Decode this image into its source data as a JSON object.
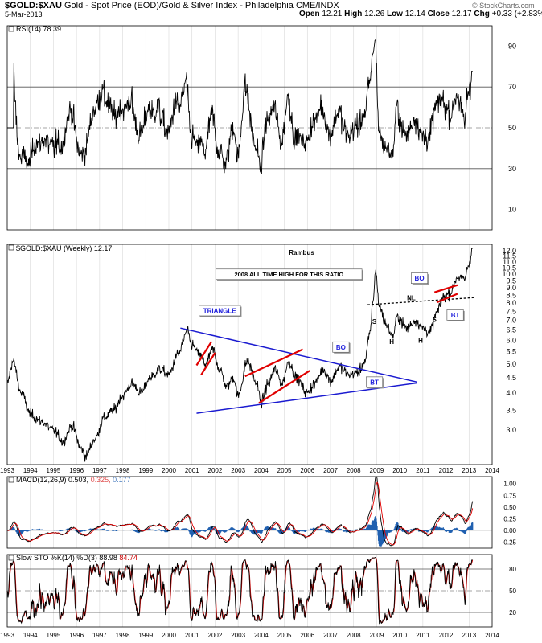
{
  "header": {
    "symbol": "$GOLD:$XAU",
    "description": "Gold - Spot Price (EOD)/Gold & Silver Index - Philadelphia",
    "exchange": "CME/INDX",
    "date": "5-Mar-2013",
    "open_label": "Open",
    "open": "12.21",
    "high_label": "High",
    "high": "12.26",
    "low_label": "Low",
    "low": "12.14",
    "close_label": "Close",
    "close": "12.17",
    "chg_label": "Chg",
    "chg": "+0.33 (+2.83%)",
    "watermark": "© StockCharts.com"
  },
  "colors": {
    "price": "#000000",
    "grid": "#d8d8d8",
    "triangle": "#1a1ad0",
    "channel": "#e00000",
    "macd_signal": "#e00000",
    "macd_hist": "#2060b0",
    "sto_d": "#cc0000",
    "label_blue": "#2222dd",
    "macd_value2": "#e05050",
    "macd_value3": "#4d7fc0"
  },
  "chart_data": [
    {
      "id": "rsi",
      "type": "line",
      "title": "RSI(14) 78.39",
      "ylim": [
        0,
        100
      ],
      "yticks": [
        10,
        30,
        50,
        70,
        90
      ],
      "reference_lines": [
        30,
        50,
        70
      ],
      "x_range": [
        1993.0,
        2014.0
      ],
      "series_desc": "RSI(14) of weekly ratio, oscillating mostly between 30 and 75; peak ~89 at end of 2008; last value 78.39"
    },
    {
      "id": "price",
      "type": "line",
      "title": "$GOLD:$XAU (Weekly) 12.17",
      "annotation_center": "Rambus",
      "yscale": "log",
      "ylim": [
        2.3,
        12.6
      ],
      "yticks": [
        3.0,
        3.5,
        4.0,
        4.5,
        5.0,
        5.5,
        6.0,
        6.5,
        7.0,
        7.5,
        8.0,
        8.5,
        9.0,
        9.5,
        10.0,
        10.5,
        11.0,
        11.5,
        12.0
      ],
      "ytick_labels": [
        "3.0",
        "3.5",
        "4.0",
        "4.5",
        "5.0",
        "5.5",
        "6.0",
        "6.5",
        "7.0",
        "7.5",
        "8.0",
        "8.5",
        "9.0",
        "9.5",
        "10.0",
        "10.5",
        "11.0",
        "11.5",
        "12.0"
      ],
      "x_range": [
        1993.0,
        2014.0
      ],
      "xticks": [
        1993,
        1994,
        1995,
        1996,
        1997,
        1998,
        1999,
        2000,
        2001,
        2002,
        2003,
        2004,
        2005,
        2006,
        2007,
        2008,
        2009,
        2010,
        2011,
        2012,
        2013,
        2014
      ],
      "anchors": [
        [
          1993.0,
          4.3
        ],
        [
          1993.25,
          5.1
        ],
        [
          1993.6,
          4.0
        ],
        [
          1994.0,
          3.4
        ],
        [
          1994.5,
          3.2
        ],
        [
          1995.0,
          3.0
        ],
        [
          1995.4,
          2.75
        ],
        [
          1995.8,
          3.1
        ],
        [
          1996.2,
          2.6
        ],
        [
          1996.4,
          2.45
        ],
        [
          1996.8,
          2.8
        ],
        [
          1997.2,
          3.3
        ],
        [
          1997.6,
          3.5
        ],
        [
          1998.0,
          3.9
        ],
        [
          1998.4,
          4.3
        ],
        [
          1998.8,
          4.0
        ],
        [
          1999.2,
          4.5
        ],
        [
          1999.6,
          4.8
        ],
        [
          2000.0,
          4.6
        ],
        [
          2000.4,
          5.4
        ],
        [
          2000.8,
          6.4
        ],
        [
          2001.0,
          5.8
        ],
        [
          2001.3,
          5.4
        ],
        [
          2001.6,
          5.0
        ],
        [
          2001.9,
          5.6
        ],
        [
          2002.2,
          4.8
        ],
        [
          2002.5,
          4.2
        ],
        [
          2002.8,
          4.5
        ],
        [
          2003.0,
          3.9
        ],
        [
          2003.4,
          5.1
        ],
        [
          2003.8,
          4.3
        ],
        [
          2004.0,
          3.7
        ],
        [
          2004.3,
          4.3
        ],
        [
          2004.6,
          4.8
        ],
        [
          2004.9,
          4.3
        ],
        [
          2005.2,
          5.1
        ],
        [
          2005.5,
          4.5
        ],
        [
          2006.0,
          4.0
        ],
        [
          2006.3,
          4.3
        ],
        [
          2006.7,
          4.8
        ],
        [
          2007.0,
          4.4
        ],
        [
          2007.4,
          4.9
        ],
        [
          2007.8,
          4.6
        ],
        [
          2008.2,
          4.7
        ],
        [
          2008.5,
          5.1
        ],
        [
          2008.7,
          6.3
        ],
        [
          2008.85,
          8.2
        ],
        [
          2008.95,
          10.3
        ],
        [
          2009.1,
          7.9
        ],
        [
          2009.4,
          6.8
        ],
        [
          2009.7,
          6.2
        ],
        [
          2009.9,
          7.2
        ],
        [
          2010.3,
          6.6
        ],
        [
          2010.7,
          7.0
        ],
        [
          2011.0,
          6.6
        ],
        [
          2011.3,
          6.4
        ],
        [
          2011.6,
          7.4
        ],
        [
          2011.9,
          8.4
        ],
        [
          2012.2,
          8.7
        ],
        [
          2012.5,
          9.8
        ],
        [
          2012.8,
          9.6
        ],
        [
          2013.0,
          10.8
        ],
        [
          2013.17,
          12.2
        ]
      ],
      "annotations": [
        {
          "text": "TRIANGLE",
          "at": [
            2002.2,
            7.55
          ],
          "style": "callout",
          "color": "#2222dd"
        },
        {
          "text": "2008 ALL TIME HIGH FOR THIS RATIO",
          "at": [
            2005.2,
            10.0
          ],
          "style": "callout",
          "color": "#000000"
        },
        {
          "text": "BO",
          "at": [
            2007.45,
            5.7
          ],
          "style": "callout",
          "color": "#2222dd"
        },
        {
          "text": "BT",
          "at": [
            2008.9,
            4.35
          ],
          "style": "callout",
          "color": "#2222dd"
        },
        {
          "text": "BO",
          "at": [
            2010.85,
            9.7
          ],
          "style": "callout",
          "color": "#2222dd"
        },
        {
          "text": "BT",
          "at": [
            2012.4,
            7.3
          ],
          "style": "callout",
          "color": "#2222dd"
        },
        {
          "text": "NL",
          "at": [
            2010.5,
            8.35
          ],
          "style": "text"
        },
        {
          "text": "S",
          "at": [
            2008.9,
            6.95
          ],
          "style": "text"
        },
        {
          "text": "S",
          "at": [
            2011.5,
            7.05
          ],
          "style": "text"
        },
        {
          "text": "H",
          "at": [
            2009.65,
            5.95
          ],
          "style": "text"
        },
        {
          "text": "H",
          "at": [
            2010.9,
            6.0
          ],
          "style": "text"
        }
      ],
      "trendlines": [
        {
          "name": "triangle-upper",
          "from": [
            2000.5,
            6.6
          ],
          "to": [
            2010.75,
            4.35
          ],
          "color": "#1a1ad0"
        },
        {
          "name": "triangle-lower",
          "from": [
            2001.2,
            3.42
          ],
          "to": [
            2010.75,
            4.32
          ],
          "color": "#1a1ad0"
        },
        {
          "name": "neckline",
          "from": [
            2008.6,
            7.9
          ],
          "to": [
            2013.2,
            8.35
          ],
          "color": "#000000",
          "dashed": true
        },
        {
          "name": "channel-1",
          "from": [
            2001.2,
            4.95
          ],
          "to": [
            2001.85,
            5.95
          ],
          "color": "#e00000"
        },
        {
          "name": "channel-2",
          "from": [
            2001.4,
            4.6
          ],
          "to": [
            2002.0,
            5.45
          ],
          "color": "#e00000"
        },
        {
          "name": "channel-3",
          "from": [
            2003.3,
            4.55
          ],
          "to": [
            2005.8,
            5.6
          ],
          "color": "#e00000"
        },
        {
          "name": "channel-4",
          "from": [
            2003.9,
            3.7
          ],
          "to": [
            2006.1,
            4.75
          ],
          "color": "#e00000"
        },
        {
          "name": "channel-5",
          "from": [
            2011.5,
            8.7
          ],
          "to": [
            2012.5,
            9.2
          ],
          "color": "#e00000"
        },
        {
          "name": "channel-6",
          "from": [
            2011.6,
            8.05
          ],
          "to": [
            2012.5,
            8.6
          ],
          "color": "#e00000"
        }
      ]
    },
    {
      "id": "macd",
      "type": "line",
      "title": "MACD(12,26,9)",
      "values": [
        "0.503",
        "0.325",
        "0.177"
      ],
      "ylim": [
        -0.38,
        1.15
      ],
      "yticks": [
        -0.25,
        0.0,
        0.25,
        0.5,
        0.75,
        1.0
      ],
      "ytick_labels": [
        "-0.25",
        "0.00",
        "0.25",
        "0.50",
        "0.75",
        "1.00"
      ],
      "x_range": [
        1993.0,
        2014.0
      ],
      "xticks": [
        1993,
        1994,
        1995,
        1996,
        1997,
        1998,
        1999,
        2000,
        2001,
        2002,
        2003,
        2004,
        2005,
        2006,
        2007,
        2008,
        2009,
        2010,
        2011,
        2012,
        2013,
        2014
      ]
    },
    {
      "id": "sto",
      "type": "line",
      "title": "Slow STO %K(14) %D(3)",
      "values": [
        "88.98",
        "84.74"
      ],
      "ylim": [
        0,
        100
      ],
      "yticks": [
        20,
        50,
        80
      ],
      "reference_lines": [
        20,
        50,
        80
      ],
      "x_range": [
        1993.0,
        2014.0
      ],
      "xticks": [
        1993,
        1994,
        1995,
        1996,
        1997,
        1998,
        1999,
        2000,
        2001,
        2002,
        2003,
        2004,
        2005,
        2006,
        2007,
        2008,
        2009,
        2010,
        2011,
        2012,
        2013,
        2014
      ]
    }
  ]
}
